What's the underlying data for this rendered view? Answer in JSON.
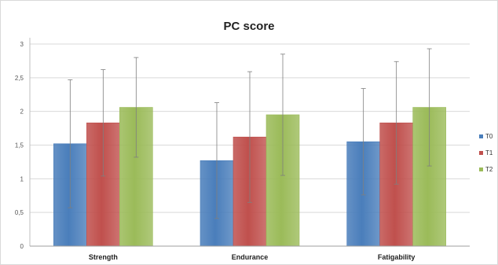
{
  "chart_data": {
    "type": "bar",
    "title": "PC score",
    "xlabel": "",
    "ylabel": "",
    "ylim": [
      0,
      3
    ],
    "yticks": [
      0,
      0.5,
      1,
      1.5,
      2,
      2.5,
      3
    ],
    "ytick_labels": [
      "0",
      "0,5",
      "1",
      "1,5",
      "2",
      "2,5",
      "3"
    ],
    "grid": true,
    "legend_position": "right",
    "categories": [
      "Strength",
      "Endurance",
      "Fatigability"
    ],
    "series": [
      {
        "name": "T0",
        "color": "#4a7ebb",
        "values": [
          1.52,
          1.27,
          1.55
        ],
        "error": [
          0.95,
          0.86,
          0.79
        ]
      },
      {
        "name": "T1",
        "color": "#c0504d",
        "values": [
          1.83,
          1.62,
          1.83
        ],
        "error": [
          0.79,
          0.97,
          0.91
        ]
      },
      {
        "name": "T2",
        "color": "#9bbb59",
        "values": [
          2.06,
          1.95,
          2.06
        ],
        "error": [
          0.74,
          0.9,
          0.87
        ]
      }
    ]
  }
}
